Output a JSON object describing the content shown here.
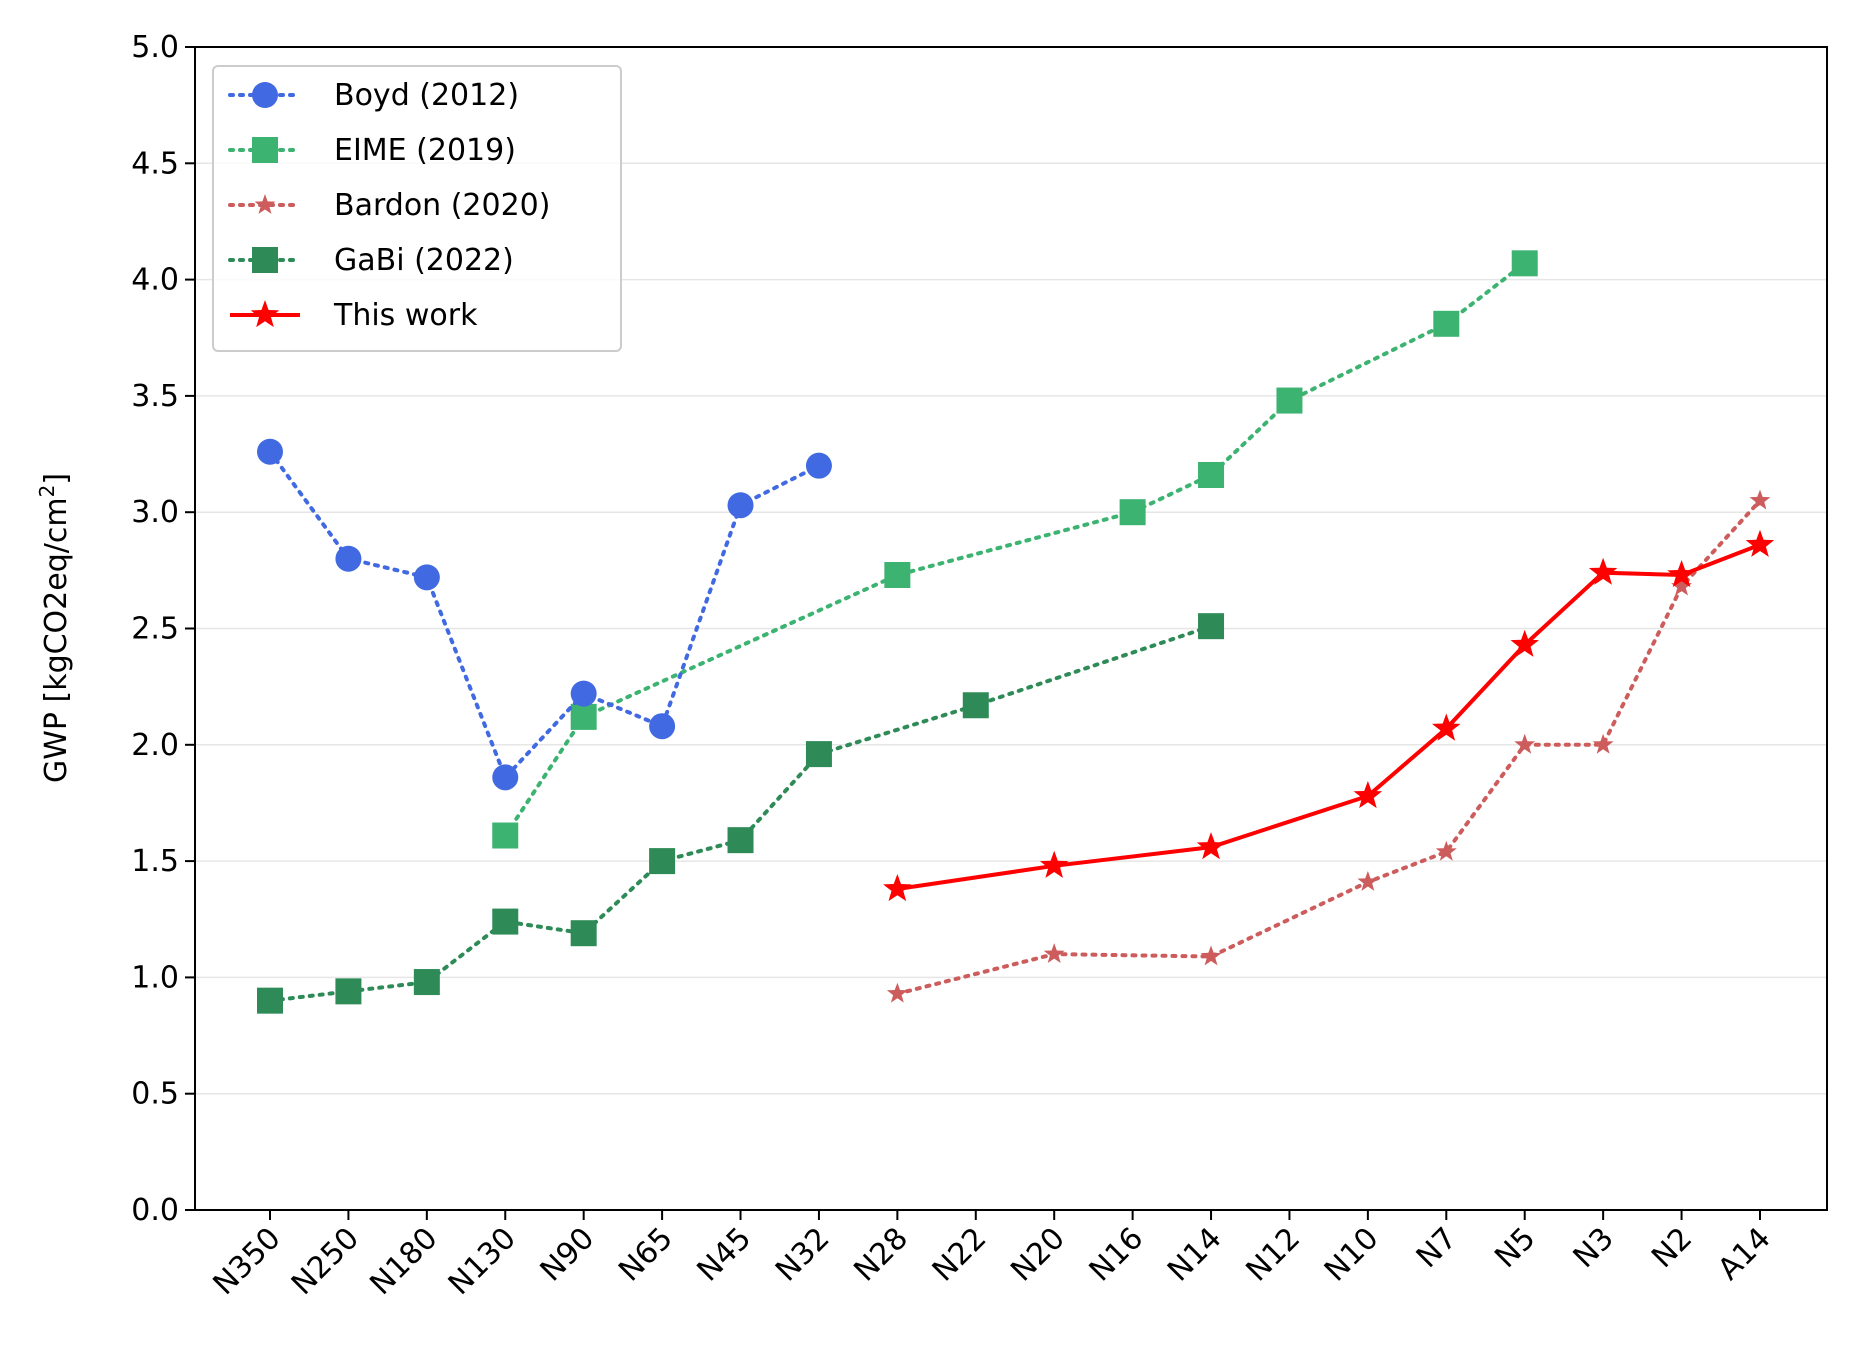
{
  "chart_data": {
    "type": "line",
    "title": "",
    "xlabel": "",
    "ylabel": "GWP [kgCO2eq/cm",
    "ylabel_superscript": "2",
    "ylabel_suffix": "]",
    "ylim": [
      0,
      5
    ],
    "yticks": [
      0.0,
      0.5,
      1.0,
      1.5,
      2.0,
      2.5,
      3.0,
      3.5,
      4.0,
      4.5,
      5.0
    ],
    "ytick_labels": [
      "0.0",
      "0.5",
      "1.0",
      "1.5",
      "2.0",
      "2.5",
      "3.0",
      "3.5",
      "4.0",
      "4.5",
      "5.0"
    ],
    "grid": "horizontal",
    "legend_position": "top-left",
    "categories": [
      "N350",
      "N250",
      "N180",
      "N130",
      "N90",
      "N65",
      "N45",
      "N32",
      "N28",
      "N22",
      "N20",
      "N16",
      "N14",
      "N12",
      "N10",
      "N7",
      "N5",
      "N3",
      "N2",
      "A14"
    ],
    "series": [
      {
        "name": "Boyd (2012)",
        "color": "#4169e1",
        "marker": "circle",
        "linestyle": "dotted",
        "points": [
          {
            "x": "N350",
            "y": 3.26
          },
          {
            "x": "N250",
            "y": 2.8
          },
          {
            "x": "N180",
            "y": 2.72
          },
          {
            "x": "N130",
            "y": 1.86
          },
          {
            "x": "N90",
            "y": 2.22
          },
          {
            "x": "N65",
            "y": 2.08
          },
          {
            "x": "N45",
            "y": 3.03
          },
          {
            "x": "N32",
            "y": 3.2
          }
        ]
      },
      {
        "name": "EIME (2019)",
        "color": "#3cb371",
        "marker": "square",
        "linestyle": "dotted",
        "points": [
          {
            "x": "N130",
            "y": 1.61
          },
          {
            "x": "N90",
            "y": 2.12
          },
          {
            "x": "N28",
            "y": 2.73
          },
          {
            "x": "N16",
            "y": 3.0
          },
          {
            "x": "N14",
            "y": 3.16
          },
          {
            "x": "N12",
            "y": 3.48
          },
          {
            "x": "N7",
            "y": 3.81
          },
          {
            "x": "N5",
            "y": 4.07
          }
        ]
      },
      {
        "name": "Bardon (2020)",
        "color": "#cd5c5c",
        "marker": "star-small",
        "linestyle": "dotted",
        "points": [
          {
            "x": "N28",
            "y": 0.93
          },
          {
            "x": "N20",
            "y": 1.1
          },
          {
            "x": "N14",
            "y": 1.09
          },
          {
            "x": "N10",
            "y": 1.41
          },
          {
            "x": "N7",
            "y": 1.54
          },
          {
            "x": "N5",
            "y": 2.0
          },
          {
            "x": "N3",
            "y": 2.0
          },
          {
            "x": "N2",
            "y": 2.68
          },
          {
            "x": "A14",
            "y": 3.05
          }
        ]
      },
      {
        "name": "GaBi (2022)",
        "color": "#2e8b57",
        "marker": "square",
        "linestyle": "dotted",
        "points": [
          {
            "x": "N350",
            "y": 0.9
          },
          {
            "x": "N250",
            "y": 0.94
          },
          {
            "x": "N180",
            "y": 0.98
          },
          {
            "x": "N130",
            "y": 1.24
          },
          {
            "x": "N90",
            "y": 1.19
          },
          {
            "x": "N65",
            "y": 1.5
          },
          {
            "x": "N45",
            "y": 1.59
          },
          {
            "x": "N32",
            "y": 1.96
          },
          {
            "x": "N22",
            "y": 2.17
          },
          {
            "x": "N14",
            "y": 2.51
          }
        ]
      },
      {
        "name": "This work",
        "color": "#ff0000",
        "marker": "star",
        "linestyle": "solid",
        "points": [
          {
            "x": "N28",
            "y": 1.38
          },
          {
            "x": "N20",
            "y": 1.48
          },
          {
            "x": "N14",
            "y": 1.56
          },
          {
            "x": "N10",
            "y": 1.78
          },
          {
            "x": "N7",
            "y": 2.07
          },
          {
            "x": "N5",
            "y": 2.43
          },
          {
            "x": "N3",
            "y": 2.74
          },
          {
            "x": "N2",
            "y": 2.73
          },
          {
            "x": "A14",
            "y": 2.86
          }
        ]
      }
    ]
  }
}
